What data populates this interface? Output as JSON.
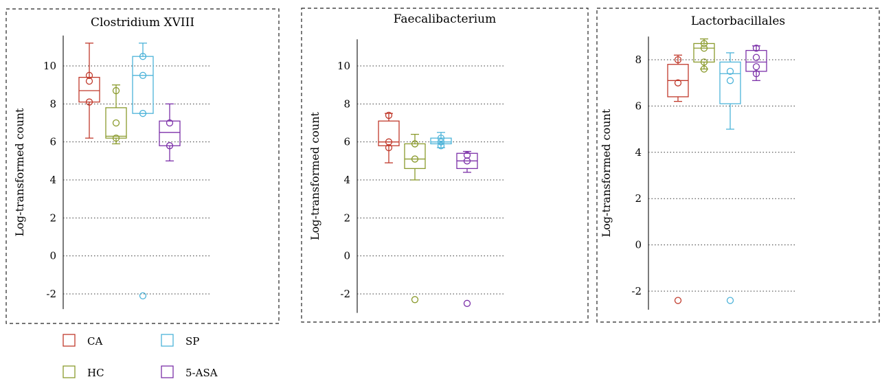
{
  "colors": {
    "CA": "#c0392b",
    "HC": "#8a9a2c",
    "SP": "#4cb3d9",
    "5-ASA": "#7b2fa8"
  },
  "legend": [
    {
      "label": "CA",
      "color_key": "CA"
    },
    {
      "label": "SP",
      "color_key": "SP"
    },
    {
      "label": "HC",
      "color_key": "HC"
    },
    {
      "label": "5-ASA",
      "color_key": "5-ASA"
    }
  ],
  "chart_data": [
    {
      "type": "box",
      "title": "Clostridium XVIII",
      "ylabel": "Log-transformed count",
      "ylim": [
        -2.8,
        11.6
      ],
      "yticks": [
        -2,
        0,
        2,
        4,
        6,
        8,
        10
      ],
      "grid": "dotted-horizontal",
      "groups": [
        {
          "name": "CA",
          "q1": 8.1,
          "median": 8.7,
          "q3": 9.4,
          "whisker_low": 6.2,
          "whisker_high": 11.2,
          "points": [
            9.5,
            9.2,
            8.1
          ]
        },
        {
          "name": "HC",
          "q1": 6.2,
          "median": 6.3,
          "q3": 7.8,
          "whisker_low": 5.9,
          "whisker_high": 9.0,
          "points": [
            8.7,
            7.0,
            6.2
          ]
        },
        {
          "name": "SP",
          "q1": 7.5,
          "median": 9.5,
          "q3": 10.5,
          "whisker_low": 7.5,
          "whisker_high": 11.2,
          "points": [
            10.5,
            9.5,
            7.5,
            -2.1
          ]
        },
        {
          "name": "5-ASA",
          "q1": 5.8,
          "median": 6.5,
          "q3": 7.1,
          "whisker_low": 5.0,
          "whisker_high": 8.0,
          "points": [
            7.0,
            5.8
          ]
        }
      ]
    },
    {
      "type": "box",
      "title": "Faecalibacterium",
      "ylabel": "Log-transformed count",
      "ylim": [
        -3.0,
        11.4
      ],
      "yticks": [
        -2,
        0,
        2,
        4,
        6,
        8,
        10
      ],
      "grid": "dotted-horizontal",
      "groups": [
        {
          "name": "CA",
          "q1": 5.8,
          "median": 6.0,
          "q3": 7.1,
          "whisker_low": 4.9,
          "whisker_high": 7.5,
          "points": [
            7.4,
            6.0,
            5.7
          ]
        },
        {
          "name": "HC",
          "q1": 4.6,
          "median": 5.1,
          "q3": 5.9,
          "whisker_low": 4.0,
          "whisker_high": 6.4,
          "points": [
            5.9,
            5.1,
            -2.3
          ]
        },
        {
          "name": "SP",
          "q1": 5.9,
          "median": 6.0,
          "q3": 6.2,
          "whisker_low": 5.7,
          "whisker_high": 6.5,
          "points": [
            6.2,
            6.0,
            5.8
          ]
        },
        {
          "name": "5-ASA",
          "q1": 4.6,
          "median": 5.0,
          "q3": 5.4,
          "whisker_low": 4.4,
          "whisker_high": 5.5,
          "points": [
            5.3,
            5.0,
            -2.5
          ]
        }
      ]
    },
    {
      "type": "box",
      "title": "Lactorbacillales",
      "ylabel": "Log-transformed count",
      "ylim": [
        -2.8,
        9.0
      ],
      "yticks": [
        -2,
        0,
        2,
        4,
        6,
        8
      ],
      "grid": "dotted-horizontal",
      "groups": [
        {
          "name": "CA",
          "q1": 6.4,
          "median": 7.1,
          "q3": 7.8,
          "whisker_low": 6.2,
          "whisker_high": 8.2,
          "points": [
            8.0,
            7.0,
            -2.4
          ]
        },
        {
          "name": "HC",
          "q1": 7.9,
          "median": 8.5,
          "q3": 8.7,
          "whisker_low": 7.6,
          "whisker_high": 8.9,
          "points": [
            8.7,
            8.5,
            7.9,
            7.6
          ]
        },
        {
          "name": "SP",
          "q1": 6.1,
          "median": 7.4,
          "q3": 7.9,
          "whisker_low": 5.0,
          "whisker_high": 8.3,
          "points": [
            7.5,
            7.1,
            -2.4
          ]
        },
        {
          "name": "5-ASA",
          "q1": 7.5,
          "median": 7.9,
          "q3": 8.4,
          "whisker_low": 7.1,
          "whisker_high": 8.6,
          "points": [
            8.5,
            8.1,
            7.7,
            7.4
          ]
        }
      ]
    }
  ]
}
